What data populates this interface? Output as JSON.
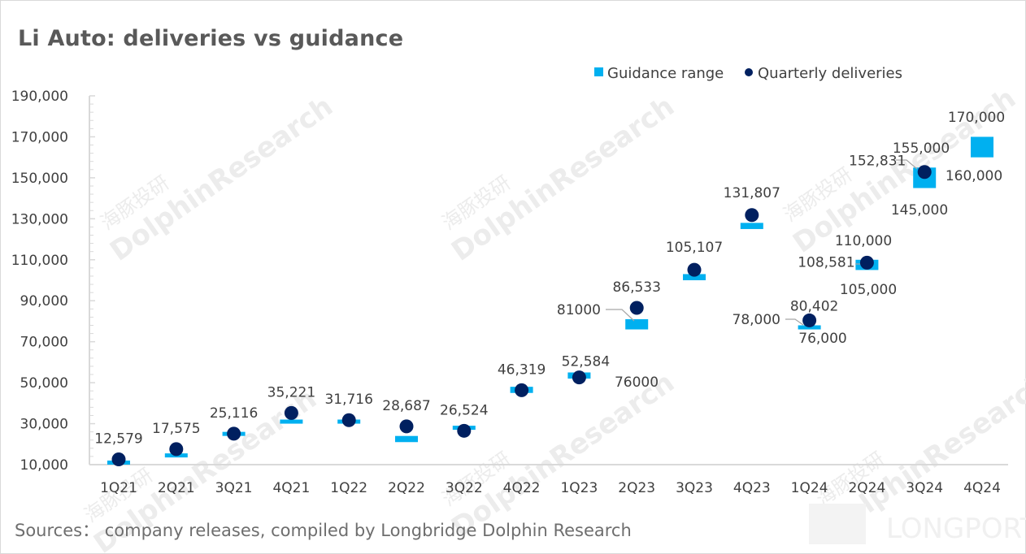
{
  "title": "Li Auto: deliveries vs guidance",
  "source": "Sources：  company releases, compiled by Longbridge Dolphin Research",
  "watermark": {
    "text": "DolphinResearch",
    "cn": "海豚投研",
    "brand": "LONGPORT"
  },
  "colors": {
    "guidance": "#00b0f0",
    "deliveries": "#002060",
    "axis": "#d9d9d9",
    "text": "#404040",
    "leader": "#a6a6a6"
  },
  "chart_data": {
    "type": "scatter",
    "title": "Li Auto: deliveries vs guidance",
    "xlabel": "",
    "ylabel": "",
    "ylim": [
      10000,
      190000
    ],
    "yticks": [
      10000,
      30000,
      50000,
      70000,
      90000,
      110000,
      130000,
      150000,
      170000,
      190000
    ],
    "ytick_labels": [
      "10,000",
      "30,000",
      "50,000",
      "70,000",
      "90,000",
      "110,000",
      "130,000",
      "150,000",
      "170,000",
      "190,000"
    ],
    "minor_tick_step": 4000,
    "grid": false,
    "legend": {
      "position": "top-right",
      "entries": [
        "Guidance range",
        "Quarterly deliveries"
      ]
    },
    "categories": [
      "1Q21",
      "2Q21",
      "3Q21",
      "4Q21",
      "1Q22",
      "2Q22",
      "3Q22",
      "4Q22",
      "1Q23",
      "2Q23",
      "3Q23",
      "4Q23",
      "1Q24",
      "2Q24",
      "3Q24",
      "4Q24"
    ],
    "series": [
      {
        "name": "Guidance range",
        "type": "range",
        "low": [
          10500,
          14500,
          25000,
          30000,
          30000,
          21000,
          27000,
          45000,
          52000,
          76000,
          100000,
          125000,
          76000,
          105000,
          145000,
          160000
        ],
        "high": [
          12000,
          15500,
          26000,
          32000,
          32000,
          24000,
          29000,
          48000,
          55000,
          81000,
          103000,
          128000,
          78000,
          110000,
          155000,
          170000
        ]
      },
      {
        "name": "Quarterly deliveries",
        "type": "point",
        "values": [
          12579,
          17575,
          25116,
          35221,
          31716,
          28687,
          26524,
          46319,
          52584,
          86533,
          105107,
          131807,
          80402,
          108581,
          152831,
          null
        ],
        "labels": [
          "12,579",
          "17,575",
          "25,116",
          "35,221",
          "31,716",
          "28,687",
          "26,524",
          "46,319",
          "52,584",
          "86,533",
          "105,107",
          "131,807",
          "80,402",
          "108,581",
          "152,831",
          ""
        ]
      }
    ],
    "annotations": [
      {
        "category": "2Q23",
        "text": "81000",
        "role": "guidance-high"
      },
      {
        "category": "2Q23",
        "text": "76000",
        "role": "guidance-low"
      },
      {
        "category": "1Q24",
        "text": "78,000",
        "role": "guidance-high"
      },
      {
        "category": "1Q24",
        "text": "76,000",
        "role": "guidance-low"
      },
      {
        "category": "2Q24",
        "text": "110,000",
        "role": "guidance-high"
      },
      {
        "category": "2Q24",
        "text": "105,000",
        "role": "guidance-low"
      },
      {
        "category": "3Q24",
        "text": "155,000",
        "role": "guidance-high"
      },
      {
        "category": "3Q24",
        "text": "145,000",
        "role": "guidance-low"
      },
      {
        "category": "4Q24",
        "text": "170,000",
        "role": "guidance-high"
      },
      {
        "category": "4Q24",
        "text": "160,000",
        "role": "guidance-low"
      }
    ]
  }
}
